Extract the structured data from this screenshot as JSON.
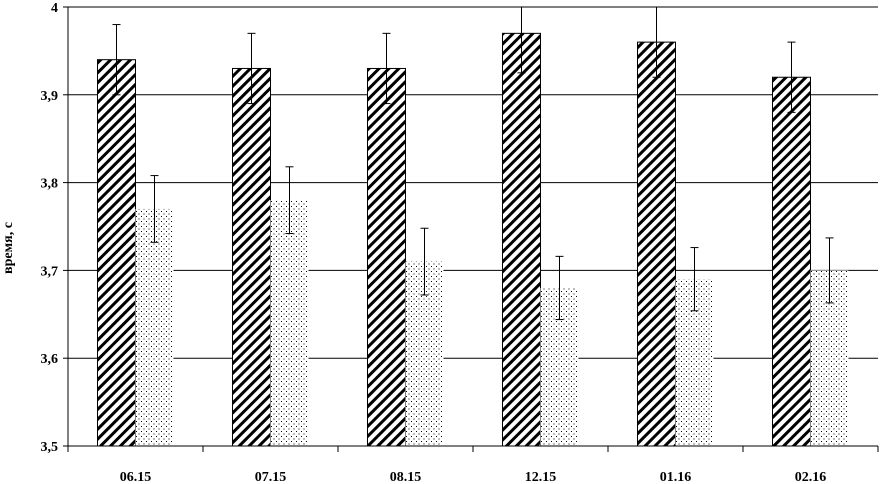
{
  "chart_data": {
    "type": "bar",
    "title": "",
    "xlabel": "",
    "ylabel": "время, с",
    "ylim": [
      3.5,
      4.0
    ],
    "yticks": [
      "3,5",
      "3,6",
      "3,7",
      "3,8",
      "3,9",
      "4"
    ],
    "grid": true,
    "legend": "none",
    "categories": [
      "06.15",
      "07.15",
      "08.15",
      "12.15",
      "01.16",
      "02.16"
    ],
    "series": [
      {
        "pattern": "diagonal-hatch",
        "values": [
          3.94,
          3.93,
          3.93,
          3.97,
          3.96,
          3.92
        ],
        "error": [
          0.04,
          0.04,
          0.04,
          0.045,
          0.04,
          0.04
        ]
      },
      {
        "pattern": "dotted",
        "values": [
          3.77,
          3.78,
          3.71,
          3.68,
          3.69,
          3.7
        ],
        "error": [
          0.038,
          0.038,
          0.038,
          0.036,
          0.036,
          0.037
        ]
      }
    ]
  }
}
